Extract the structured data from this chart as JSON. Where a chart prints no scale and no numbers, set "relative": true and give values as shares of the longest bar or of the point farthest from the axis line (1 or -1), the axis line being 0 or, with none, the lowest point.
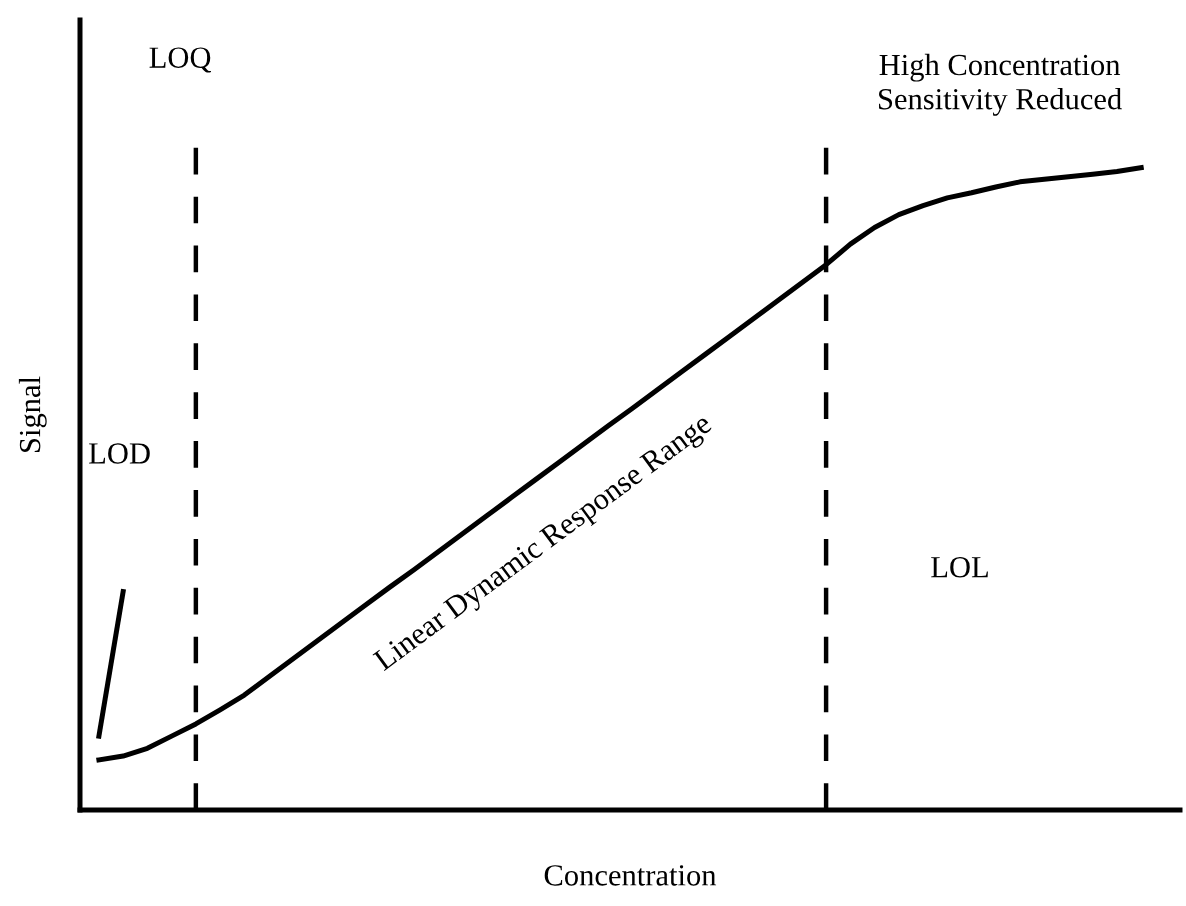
{
  "chart_data": {
    "type": "line",
    "relative": true,
    "xlabel": "Concentration",
    "ylabel": "Signal",
    "categories": [
      null,
      null,
      null,
      null,
      null,
      null,
      null,
      null,
      null,
      null,
      null,
      null,
      null,
      null,
      null,
      null,
      null,
      null,
      null,
      null,
      null,
      null,
      null,
      null,
      null,
      null,
      null,
      null,
      null,
      null,
      null,
      null,
      null,
      null,
      null,
      null,
      null,
      null,
      null,
      null,
      null,
      null,
      null,
      null
    ],
    "series": [
      {
        "color": "#000000",
        "values": [
          0.078,
          0.084,
          0.096,
          0.115,
          0.134,
          0.156,
          0.179,
          0.207,
          0.235,
          0.263,
          0.291,
          0.319,
          0.347,
          0.374,
          0.402,
          0.43,
          0.458,
          0.486,
          0.514,
          0.542,
          0.57,
          0.598,
          0.625,
          0.653,
          0.681,
          0.709,
          0.737,
          0.765,
          0.793,
          0.821,
          0.849,
          0.881,
          0.907,
          0.927,
          0.941,
          0.953,
          0.961,
          0.97,
          0.978,
          0.982,
          0.986,
          0.99,
          0.994,
          1.0
        ]
      },
      {
        "color": "#000000",
        "values": [
          0.115,
          0.34,
          null,
          null,
          null,
          null,
          null,
          null,
          null,
          null,
          null,
          null,
          null,
          null,
          null,
          null,
          null,
          null,
          null,
          null,
          null,
          null,
          null,
          null,
          null,
          null,
          null,
          null,
          null,
          null,
          null,
          null,
          null,
          null,
          null,
          null,
          null,
          null,
          null,
          null,
          null,
          null,
          null,
          null
        ]
      }
    ],
    "annotations": [
      "LOQ",
      "LOD",
      "Linear Dynamic Response Range",
      "LOL",
      "High Concentration\nSensitivity Reduced"
    ],
    "marker": "none",
    "line_style": "solid"
  }
}
